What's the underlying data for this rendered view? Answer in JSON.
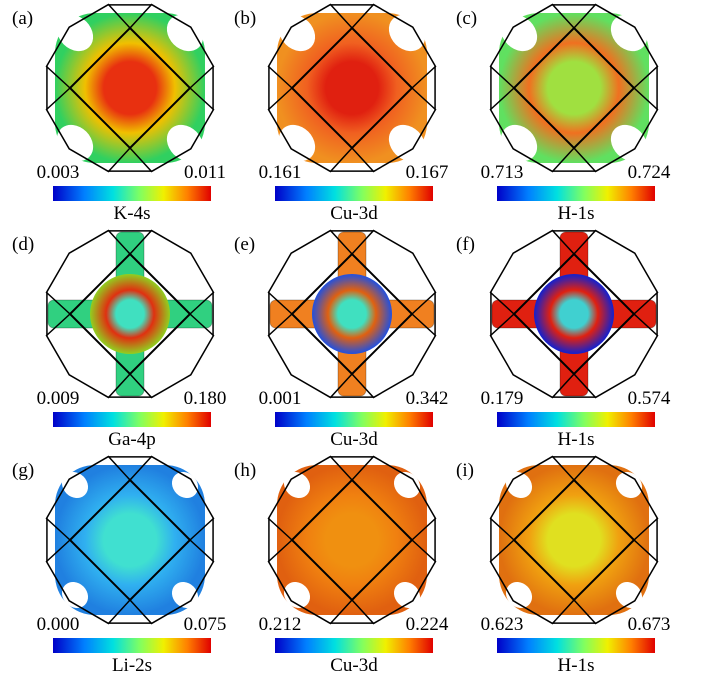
{
  "panels": [
    {
      "label": "(a)",
      "min": "0.003",
      "max": "0.011",
      "orbital": "K-4s"
    },
    {
      "label": "(b)",
      "min": "0.161",
      "max": "0.167",
      "orbital": "Cu-3d"
    },
    {
      "label": "(c)",
      "min": "0.713",
      "max": "0.724",
      "orbital": "H-1s"
    },
    {
      "label": "(d)",
      "min": "0.009",
      "max": "0.180",
      "orbital": "Ga-4p"
    },
    {
      "label": "(e)",
      "min": "0.001",
      "max": "0.342",
      "orbital": "Cu-3d"
    },
    {
      "label": "(f)",
      "min": "0.179",
      "max": "0.574",
      "orbital": "H-1s"
    },
    {
      "label": "(g)",
      "min": "0.000",
      "max": "0.075",
      "orbital": "Li-2s"
    },
    {
      "label": "(h)",
      "min": "0.212",
      "max": "0.224",
      "orbital": "Cu-3d"
    },
    {
      "label": "(i)",
      "min": "0.623",
      "max": "0.673",
      "orbital": "H-1s"
    }
  ]
}
